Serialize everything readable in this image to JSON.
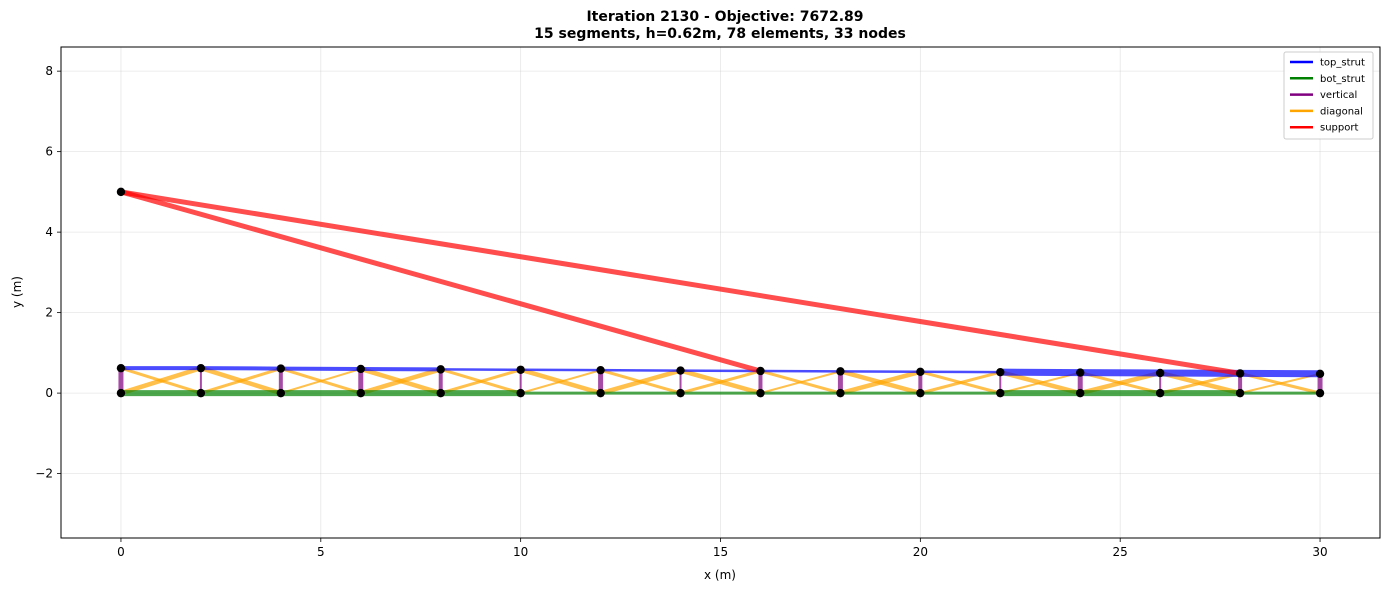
{
  "chart_data": {
    "type": "line",
    "title": "Iteration 2130 - Objective: 7672.89",
    "subtitle": "15 segments, h=0.62m, 78 elements, 33 nodes",
    "xlabel": "x (m)",
    "ylabel": "y (m)",
    "xlim": [
      -1.5,
      31.5
    ],
    "ylim": [
      -3.6,
      8.6
    ],
    "xticks": [
      0,
      5,
      10,
      15,
      20,
      25,
      30
    ],
    "yticks": [
      -2,
      0,
      2,
      4,
      6,
      8
    ],
    "grid": true,
    "legend_position": "top-right",
    "colors": {
      "top_strut": "#0000ff",
      "bot_strut": "#008000",
      "vertical": "#800080",
      "diagonal": "#ffa500",
      "support": "#ff0000",
      "node": "#000000"
    },
    "legend": [
      {
        "key": "top_strut",
        "label": "top_strut"
      },
      {
        "key": "bot_strut",
        "label": "bot_strut"
      },
      {
        "key": "vertical",
        "label": "vertical"
      },
      {
        "key": "diagonal",
        "label": "diagonal"
      },
      {
        "key": "support",
        "label": "support"
      }
    ],
    "top_nodes": [
      [
        0,
        0.62
      ],
      [
        2,
        0.62
      ],
      [
        4,
        0.61
      ],
      [
        6,
        0.6
      ],
      [
        8,
        0.59
      ],
      [
        10,
        0.58
      ],
      [
        12,
        0.57
      ],
      [
        14,
        0.56
      ],
      [
        16,
        0.55
      ],
      [
        18,
        0.54
      ],
      [
        20,
        0.53
      ],
      [
        22,
        0.52
      ],
      [
        24,
        0.51
      ],
      [
        26,
        0.5
      ],
      [
        28,
        0.49
      ],
      [
        30,
        0.48
      ]
    ],
    "bottom_nodes": [
      [
        0,
        0
      ],
      [
        2,
        0
      ],
      [
        4,
        0
      ],
      [
        6,
        0
      ],
      [
        8,
        0
      ],
      [
        10,
        0
      ],
      [
        12,
        0
      ],
      [
        14,
        0
      ],
      [
        16,
        0
      ],
      [
        18,
        0
      ],
      [
        20,
        0
      ],
      [
        22,
        0
      ],
      [
        24,
        0
      ],
      [
        26,
        0
      ],
      [
        28,
        0
      ],
      [
        30,
        0
      ]
    ],
    "support_node": [
      0,
      5.0
    ],
    "support_targets": [
      [
        16,
        0.55
      ],
      [
        28,
        0.49
      ]
    ]
  }
}
